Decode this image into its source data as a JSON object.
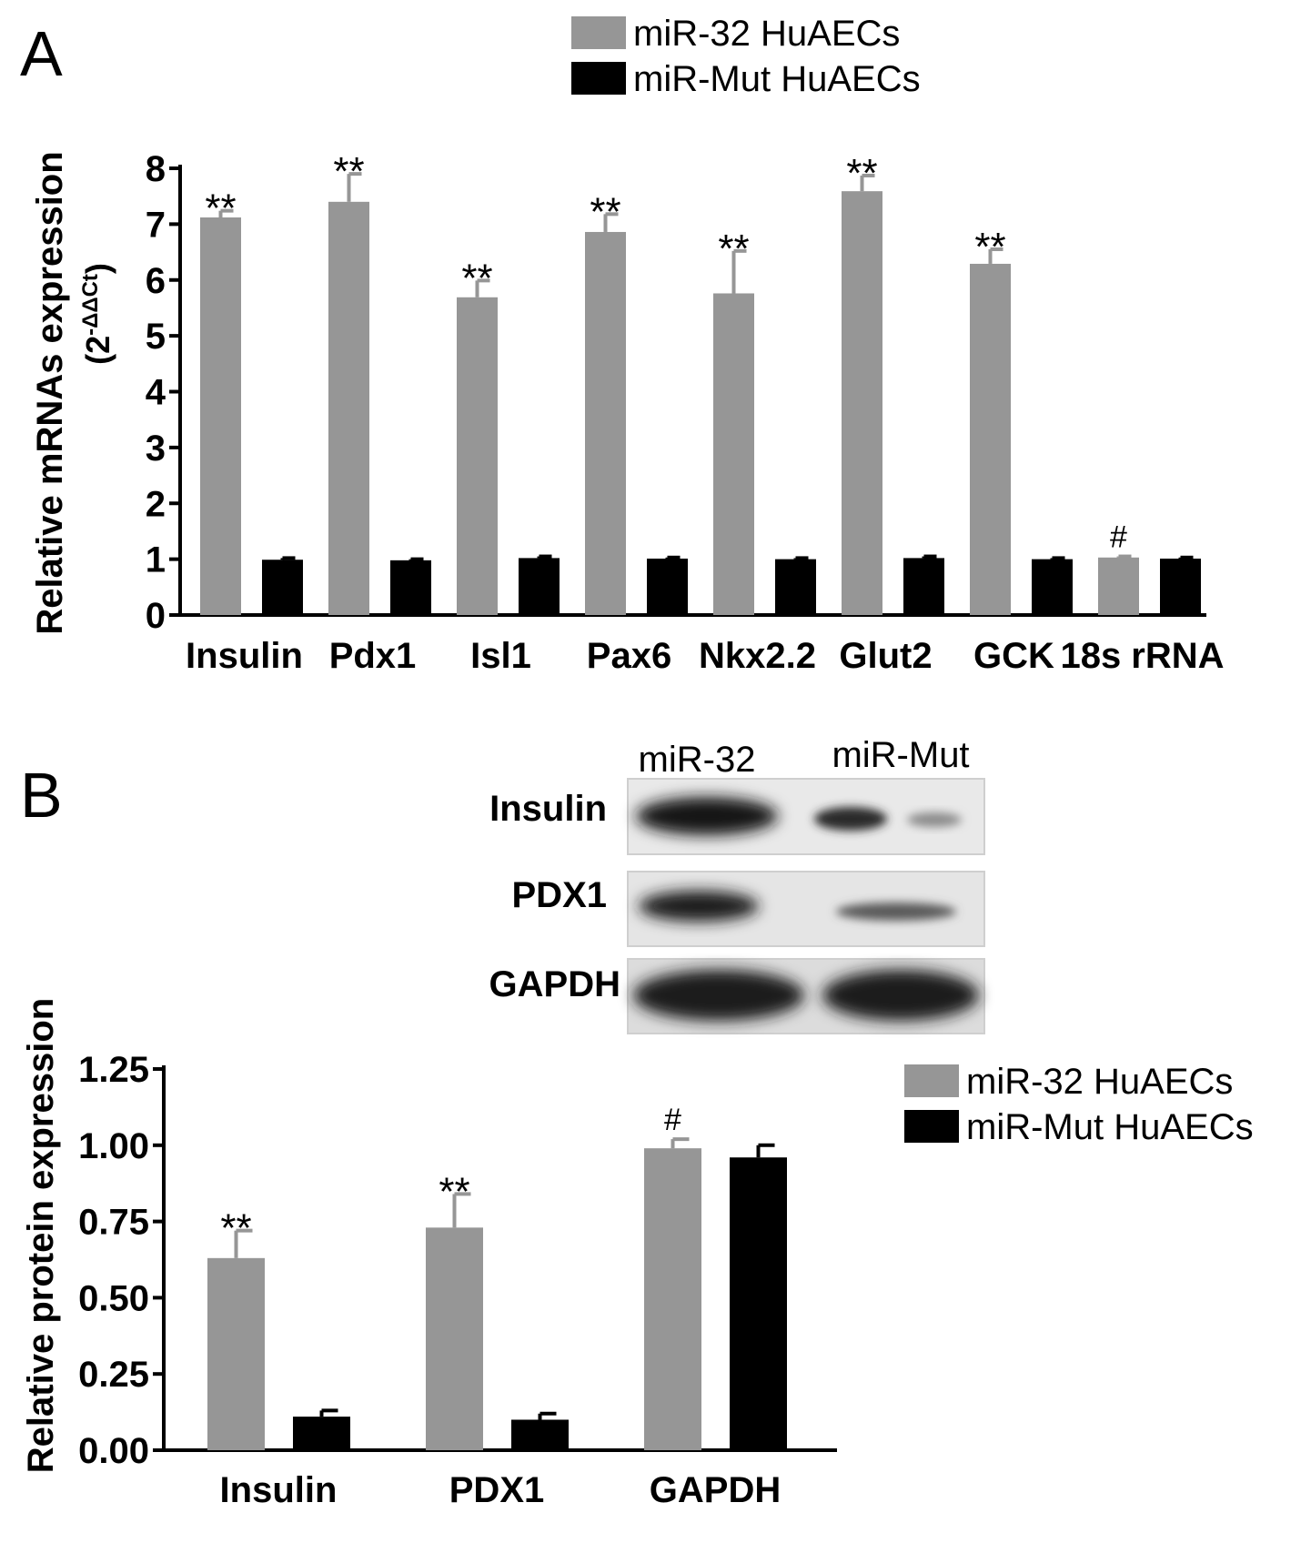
{
  "panels": [
    {
      "panel_label": "A",
      "chart_data": {
        "type": "bar",
        "ylabel": "Relative mRNAs expression",
        "ylabel_sub": {
          "prefix": "(2",
          "sup": "-ΔΔCt",
          "suffix": ")"
        },
        "categories": [
          "Insulin",
          "Pdx1",
          "Isl1",
          "Pax6",
          "Nkx2.2",
          "Glut2",
          "GCK",
          "18s rRNA"
        ],
        "series": [
          {
            "name": "miR-32 HuAECs",
            "color": "#969696",
            "values": [
              7.12,
              7.4,
              5.69,
              6.86,
              5.76,
              7.59,
              6.29,
              1.03
            ],
            "errors": [
              0.12,
              0.5,
              0.3,
              0.32,
              0.76,
              0.28,
              0.26,
              0.02
            ]
          },
          {
            "name": "miR-Mut HuAECs",
            "color": "#000000",
            "values": [
              0.99,
              0.98,
              1.02,
              1.01,
              1.0,
              1.02,
              1.0,
              1.01
            ],
            "errors": [
              0.03,
              0.02,
              0.03,
              0.02,
              0.02,
              0.03,
              0.02,
              0.02
            ]
          }
        ],
        "annotations": [
          "**",
          "**",
          "**",
          "**",
          "**",
          "**",
          "**",
          "#"
        ],
        "ylim": [
          0,
          8
        ],
        "yticks": [
          0,
          1,
          2,
          3,
          4,
          5,
          6,
          7,
          8
        ],
        "ytick_labels": [
          "0",
          "1",
          "2",
          "3",
          "4",
          "5",
          "6",
          "7",
          "8"
        ],
        "grid": false,
        "legend_position": "top-right"
      }
    },
    {
      "panel_label": "B",
      "western_blot": {
        "lanes": [
          "miR-32",
          "miR-Mut"
        ],
        "rows": [
          "Insulin",
          "PDX1",
          "GAPDH"
        ]
      },
      "chart_data": {
        "type": "bar",
        "ylabel": "Relative protein expression",
        "categories": [
          "Insulin",
          "PDX1",
          "GAPDH"
        ],
        "series": [
          {
            "name": "miR-32 HuAECs",
            "color": "#969696",
            "values": [
              0.63,
              0.73,
              0.99
            ],
            "errors": [
              0.09,
              0.11,
              0.03
            ]
          },
          {
            "name": "miR-Mut HuAECs",
            "color": "#000000",
            "values": [
              0.11,
              0.1,
              0.96
            ],
            "errors": [
              0.02,
              0.02,
              0.04
            ]
          }
        ],
        "annotations": [
          "**",
          "**",
          "#"
        ],
        "ylim": [
          0,
          1.25
        ],
        "yticks": [
          0,
          0.25,
          0.5,
          0.75,
          1.0,
          1.25
        ],
        "ytick_labels": [
          "0.00",
          "0.25",
          "0.50",
          "0.75",
          "1.00",
          "1.25"
        ],
        "grid": false,
        "legend_position": "right"
      }
    }
  ]
}
